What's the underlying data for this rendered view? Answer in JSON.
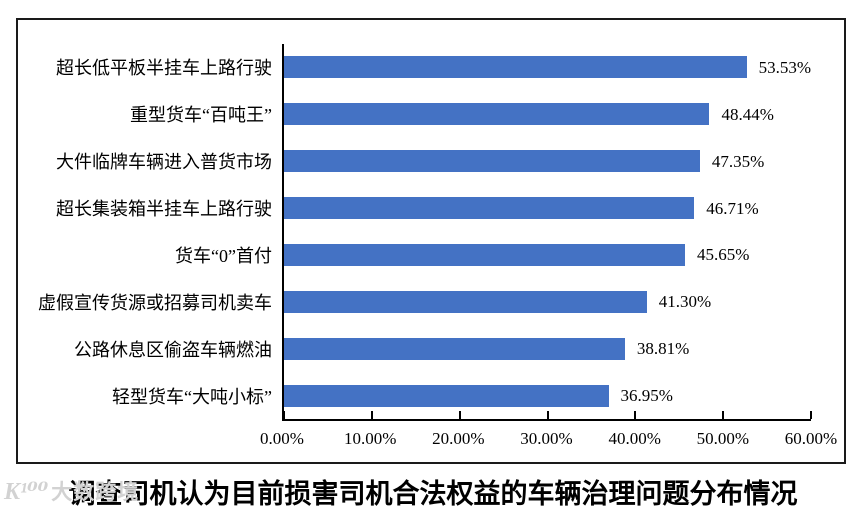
{
  "chart_data": {
    "type": "bar",
    "orientation": "horizontal",
    "title": "调查司机认为目前损害司机合法权益的车辆治理问题分布情况",
    "categories": [
      "超长低平板半挂车上路行驶",
      "重型货车“百吨王”",
      "大件临牌车辆进入普货市场",
      "超长集装箱半挂车上路行驶",
      "货车“0”首付",
      "虚假宣传货源或招募司机卖车",
      "公路休息区偷盗车辆燃油",
      "轻型货车“大吨小标”"
    ],
    "values": [
      53.53,
      48.44,
      47.35,
      46.71,
      45.65,
      41.3,
      38.81,
      36.95
    ],
    "value_labels": [
      "53.53%",
      "48.44%",
      "47.35%",
      "46.71%",
      "45.65%",
      "41.30%",
      "38.81%",
      "36.95%"
    ],
    "x_ticks": [
      "0.00%",
      "10.00%",
      "20.00%",
      "30.00%",
      "40.00%",
      "50.00%",
      "60.00%"
    ],
    "xlim": [
      0,
      60
    ],
    "bar_color": "#4472C4",
    "axis_color": "#000000",
    "grid": false,
    "legend": "none"
  },
  "watermark": {
    "logo": "K¹⁰⁰",
    "text": "大数跨境"
  }
}
